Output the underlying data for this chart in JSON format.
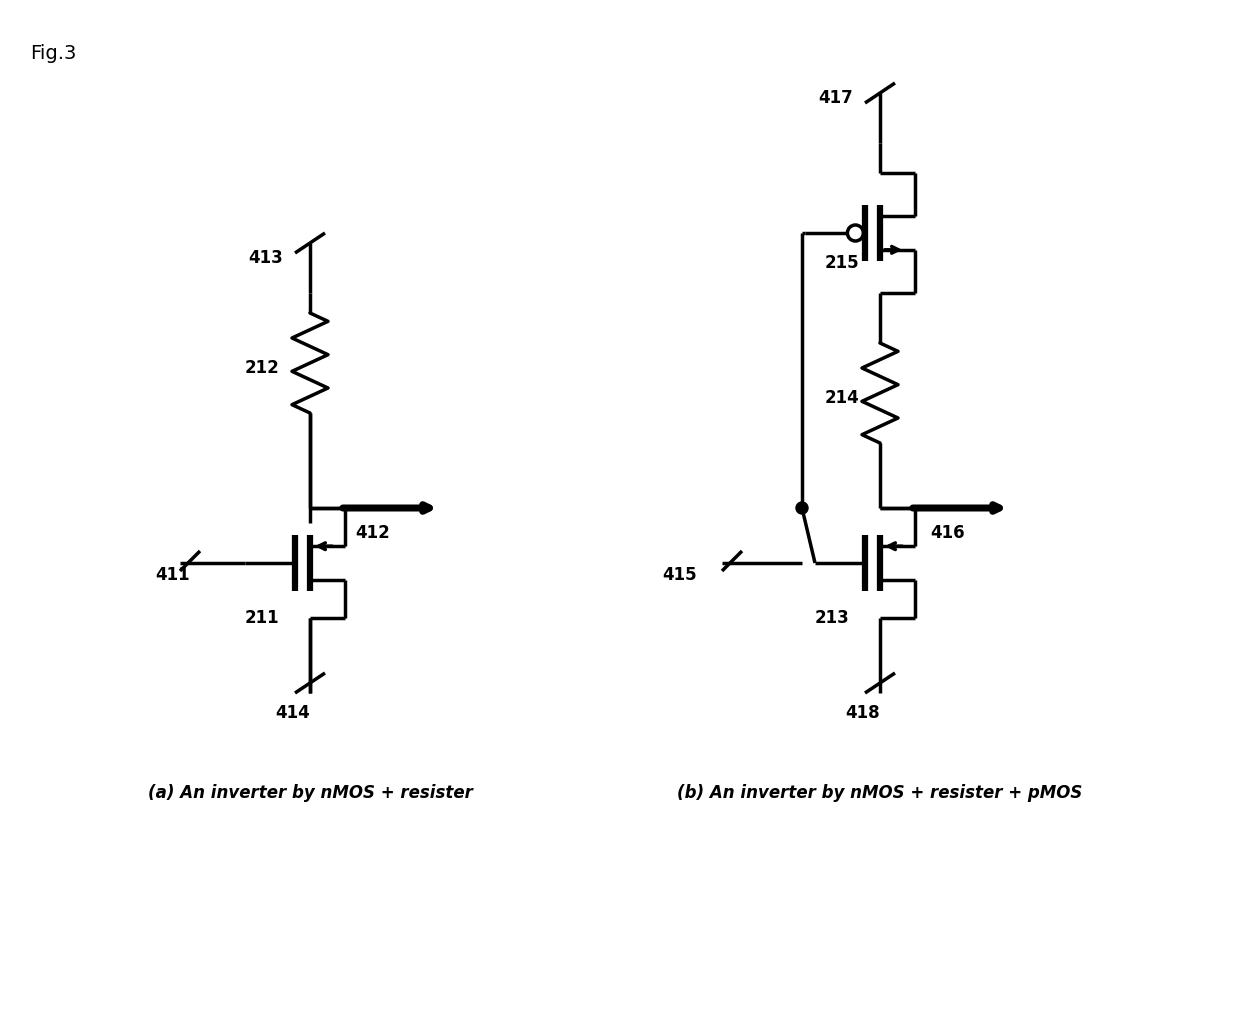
{
  "title": "Fig.3",
  "caption_a": "(a) An inverter by nMOS + resister",
  "caption_b": "(b) An inverter by nMOS + resister + pMOS",
  "bg_color": "#ffffff",
  "line_color": "#000000",
  "lw": 2.5
}
